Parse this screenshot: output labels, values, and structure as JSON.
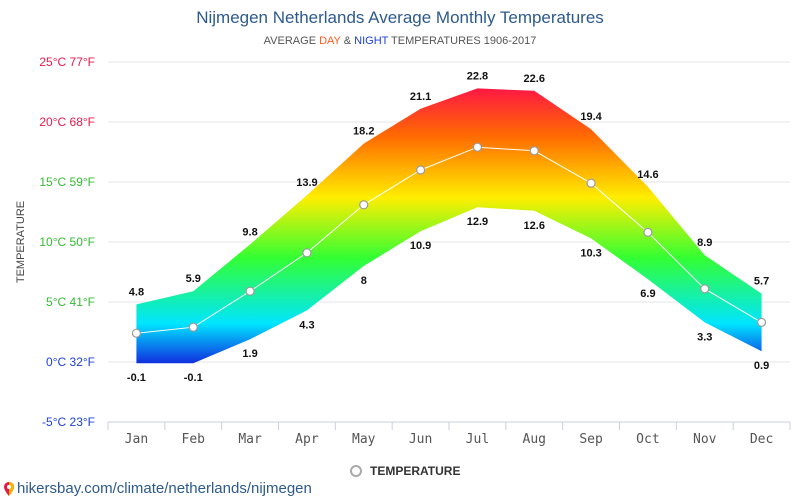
{
  "chart_data": {
    "type": "area",
    "title": "Nijmegen Netherlands Average Monthly Temperatures",
    "subtitle": {
      "prefix": "AVERAGE ",
      "day": "DAY",
      "middle": " & ",
      "night": "NIGHT",
      "suffix": " TEMPERATURES 1906-2017"
    },
    "ylabel": "TEMPERATURE",
    "ylim": [
      -5,
      25
    ],
    "y_ticks": [
      {
        "value": 25,
        "label": "25°C 77°F",
        "color": "#e8184a"
      },
      {
        "value": 20,
        "label": "20°C 68°F",
        "color": "#e8184a"
      },
      {
        "value": 15,
        "label": "15°C 59°F",
        "color": "#33bb33"
      },
      {
        "value": 10,
        "label": "10°C 50°F",
        "color": "#33bb33"
      },
      {
        "value": 5,
        "label": "5°C 41°F",
        "color": "#33bb33"
      },
      {
        "value": 0,
        "label": "0°C 32°F",
        "color": "#1c3fd8"
      },
      {
        "value": -5,
        "label": "-5°C 23°F",
        "color": "#1c3fd8"
      }
    ],
    "categories": [
      "Jan",
      "Feb",
      "Mar",
      "Apr",
      "May",
      "Jun",
      "Jul",
      "Aug",
      "Sep",
      "Oct",
      "Nov",
      "Dec"
    ],
    "series": [
      {
        "key": "day",
        "values": [
          4.8,
          5.9,
          9.8,
          13.9,
          18.2,
          21.1,
          22.8,
          22.6,
          19.4,
          14.6,
          8.9,
          5.7
        ]
      },
      {
        "key": "night",
        "values": [
          -0.1,
          -0.1,
          1.9,
          4.3,
          8,
          10.9,
          12.9,
          12.6,
          10.3,
          6.9,
          3.3,
          0.9
        ]
      },
      {
        "name": "TEMPERATURE",
        "values": [
          2.4,
          2.9,
          5.9,
          9.1,
          13.1,
          16.0,
          17.9,
          17.6,
          14.9,
          10.8,
          6.1,
          3.3
        ]
      }
    ],
    "legend": "bottom-center",
    "grid": true
  },
  "footer": {
    "text": "hikersbay.com/climate/netherlands/nijmegen",
    "pin_icon": "map-pin-icon"
  }
}
